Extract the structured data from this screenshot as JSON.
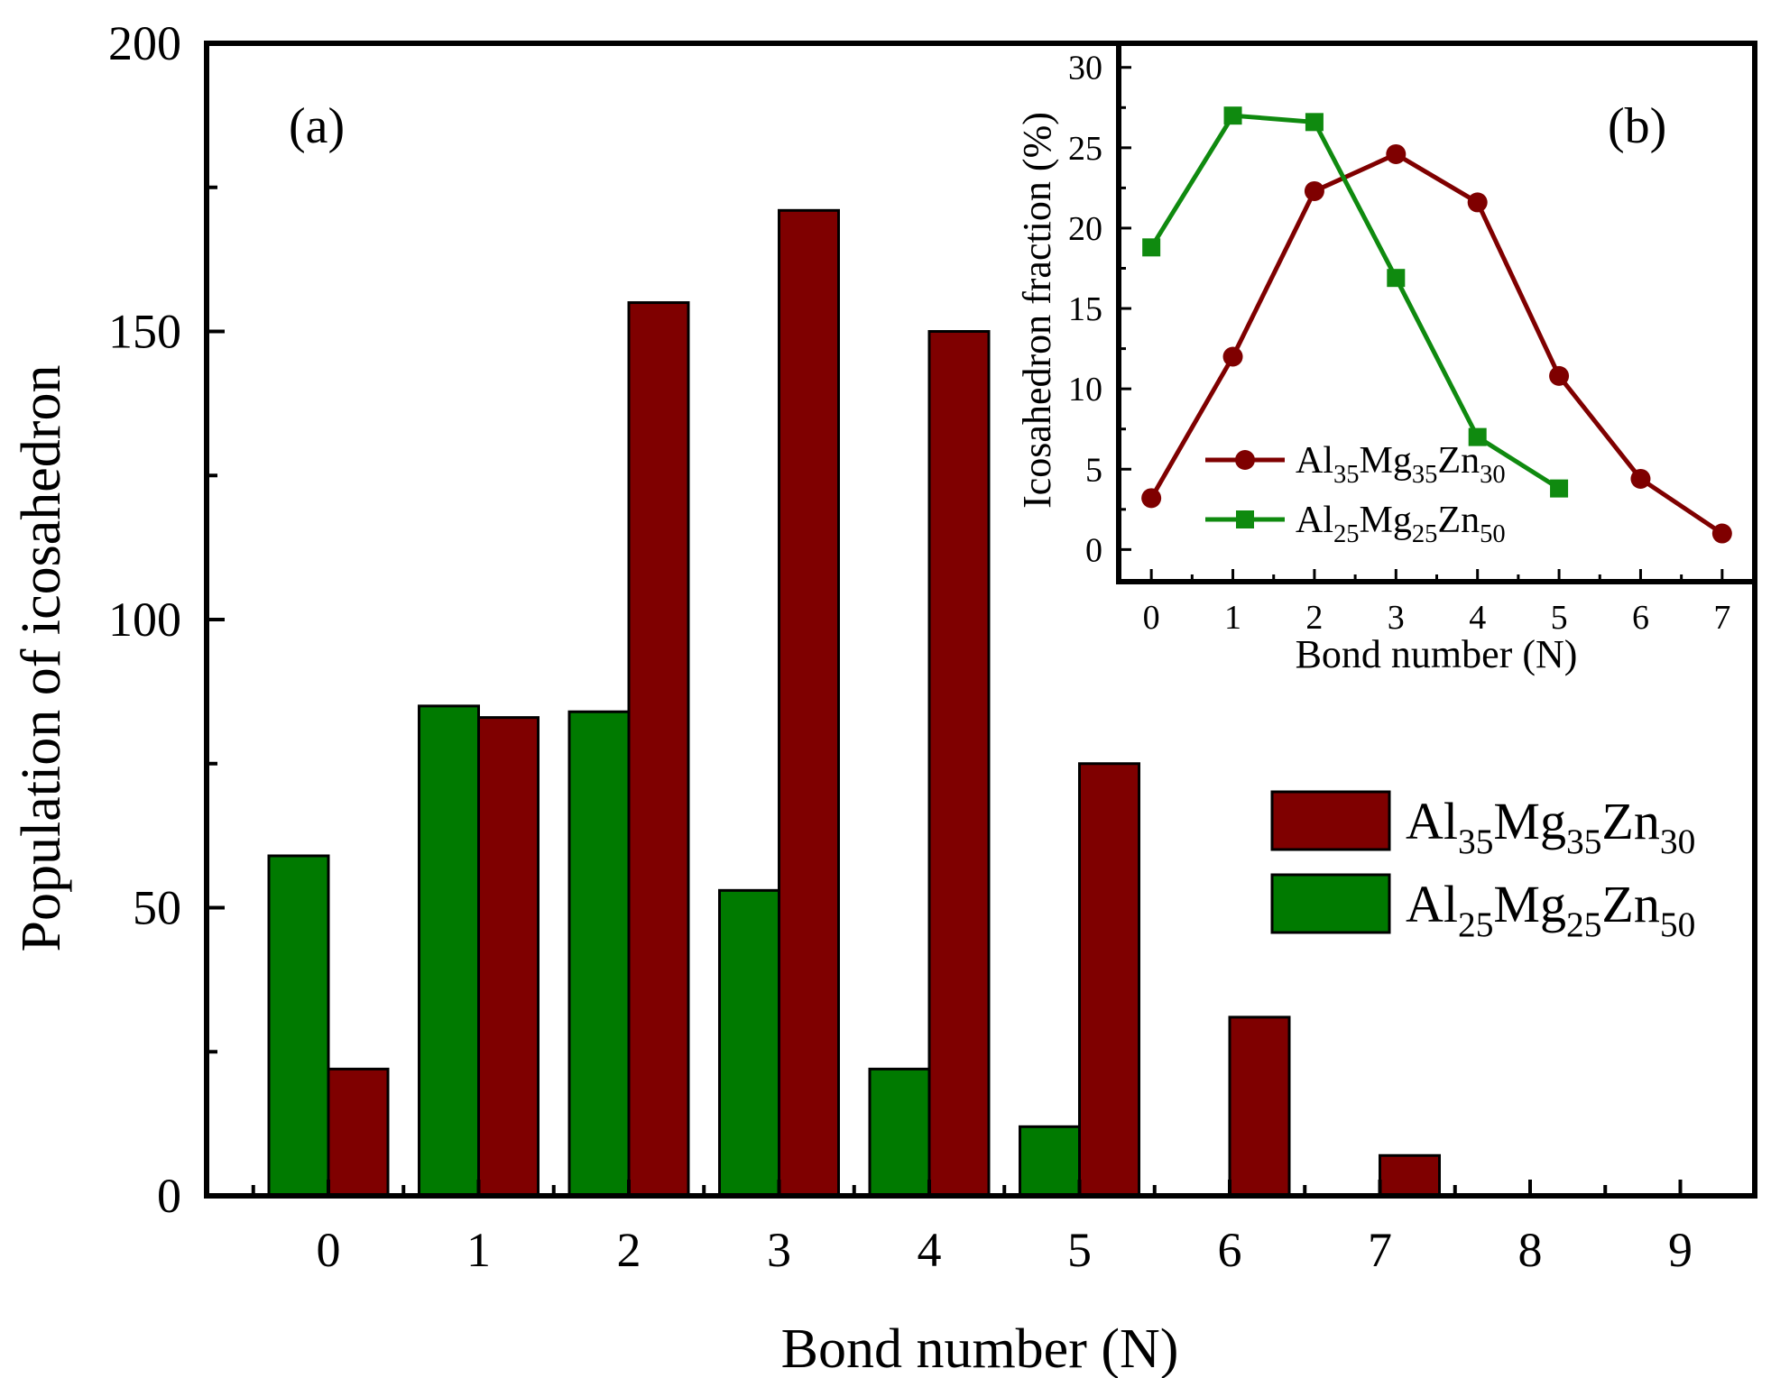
{
  "chart_data": [
    {
      "type": "bar",
      "panel_label": "(a)",
      "xlabel": "Bond number (N)",
      "ylabel": "Population of icosahedron",
      "ylim": [
        0,
        200
      ],
      "yticks": [
        0,
        50,
        100,
        150,
        200
      ],
      "categories": [
        "0",
        "1",
        "2",
        "3",
        "4",
        "5",
        "6",
        "7",
        "8",
        "9"
      ],
      "legend_position": "right",
      "series": [
        {
          "name": "Al35Mg35Zn30",
          "label_parts": [
            [
              "Al",
              "35"
            ],
            [
              "Mg",
              "35"
            ],
            [
              "Zn",
              "30"
            ]
          ],
          "color": "#7f0000",
          "values": [
            22,
            83,
            155,
            171,
            150,
            75,
            31,
            7,
            0,
            0
          ]
        },
        {
          "name": "Al25Mg25Zn50",
          "label_parts": [
            [
              "Al",
              "25"
            ],
            [
              "Mg",
              "25"
            ],
            [
              "Zn",
              "50"
            ]
          ],
          "color": "#007a00",
          "values": [
            59,
            85,
            84,
            53,
            22,
            12,
            0,
            0,
            0,
            0
          ]
        }
      ]
    },
    {
      "type": "line",
      "panel_label": "(b)",
      "xlabel": "Bond number (N)",
      "ylabel": "Icosahedron fraction (%)",
      "xlim": [
        -0.4,
        7.4
      ],
      "ylim": [
        -2,
        31.5
      ],
      "yticks": [
        0,
        5,
        10,
        15,
        20,
        25,
        30
      ],
      "xticks": [
        0,
        1,
        2,
        3,
        4,
        5,
        6,
        7
      ],
      "legend_position": "bottom-left",
      "series": [
        {
          "name": "Al35Mg35Zn30",
          "label_parts": [
            [
              "Al",
              "35"
            ],
            [
              "Mg",
              "35"
            ],
            [
              "Zn",
              "30"
            ]
          ],
          "color": "#7f0000",
          "marker": "circle",
          "x": [
            0,
            1,
            2,
            3,
            4,
            5,
            6,
            7
          ],
          "y": [
            3.2,
            12.0,
            22.3,
            24.6,
            21.6,
            10.8,
            4.4,
            1.0
          ]
        },
        {
          "name": "Al25Mg25Zn50",
          "label_parts": [
            [
              "Al",
              "25"
            ],
            [
              "Mg",
              "25"
            ],
            [
              "Zn",
              "50"
            ]
          ],
          "color": "#0f8a0f",
          "marker": "square",
          "x": [
            0,
            1,
            2,
            3,
            4,
            5
          ],
          "y": [
            18.8,
            27.0,
            26.6,
            16.9,
            7.0,
            3.8
          ]
        }
      ]
    }
  ]
}
